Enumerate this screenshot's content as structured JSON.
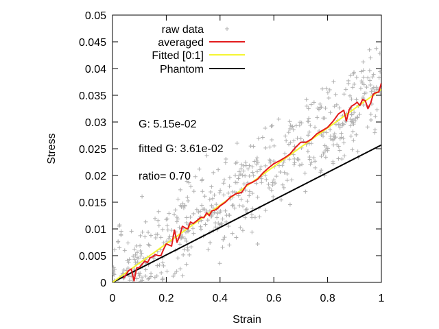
{
  "chart_data": {
    "type": "scatter",
    "xlabel": "Strain",
    "ylabel": "Stress",
    "xlim": [
      0,
      1
    ],
    "ylim": [
      0,
      0.05
    ],
    "x_ticks": [
      0,
      0.2,
      0.4,
      0.6,
      0.8,
      1
    ],
    "x_tick_labels": [
      "0",
      "0.2",
      "0.4",
      "0.6",
      "0.8",
      "1"
    ],
    "y_ticks": [
      0,
      0.005,
      0.01,
      0.015,
      0.02,
      0.025,
      0.03,
      0.035,
      0.04,
      0.045,
      0.05
    ],
    "y_tick_labels": [
      "0",
      "0.005",
      "0.01",
      "0.015",
      "0.02",
      "0.025",
      "0.03",
      "0.035",
      "0.04",
      "0.045",
      "0.05"
    ],
    "grid": false,
    "legend_position": "top-left",
    "legend": [
      {
        "label": "raw data",
        "key": "raw",
        "color": "#b0b0b0",
        "marker": "plus"
      },
      {
        "label": "averaged",
        "key": "avg",
        "color": "#e31a1c",
        "marker": "line"
      },
      {
        "label": "Fitted [0:1]",
        "key": "fit",
        "color": "#f5f532",
        "marker": "line"
      },
      {
        "label": "Phantom",
        "key": "phantom",
        "color": "#000000",
        "marker": "line"
      }
    ],
    "annotations": [
      "G: 5.15e-02",
      "fitted G: 3.61e-02",
      "ratio= 0.70"
    ],
    "raw_data_estimate": {
      "description": "point cloud around the fitted line",
      "x_range": [
        0,
        1
      ],
      "approx_slope": 0.0361,
      "approx_spread": 0.006,
      "n_points": 600
    },
    "series": [
      {
        "name": "averaged",
        "x": [
          0.04,
          0.05,
          0.06,
          0.07,
          0.08,
          0.09,
          0.1,
          0.11,
          0.12,
          0.13,
          0.14,
          0.15,
          0.16,
          0.17,
          0.18,
          0.19,
          0.2,
          0.21,
          0.22,
          0.23,
          0.24,
          0.25,
          0.26,
          0.27,
          0.28,
          0.29,
          0.3,
          0.31,
          0.32,
          0.33,
          0.34,
          0.35,
          0.36,
          0.37,
          0.38,
          0.39,
          0.4,
          0.42,
          0.44,
          0.46,
          0.48,
          0.5,
          0.52,
          0.54,
          0.56,
          0.58,
          0.6,
          0.62,
          0.64,
          0.66,
          0.68,
          0.7,
          0.72,
          0.74,
          0.76,
          0.78,
          0.8,
          0.82,
          0.84,
          0.86,
          0.87,
          0.88,
          0.89,
          0.9,
          0.91,
          0.92,
          0.93,
          0.94,
          0.95,
          0.96,
          0.97,
          0.98,
          0.99,
          1.0
        ],
        "y": [
          0.0008,
          0.0014,
          0.0022,
          0.0025,
          0.0003,
          0.0027,
          0.0028,
          0.0034,
          0.004,
          0.0037,
          0.0046,
          0.0048,
          0.0052,
          0.005,
          0.005,
          0.0062,
          0.0072,
          0.007,
          0.0068,
          0.0098,
          0.0075,
          0.0087,
          0.0105,
          0.0102,
          0.01,
          0.0113,
          0.011,
          0.0114,
          0.0118,
          0.0122,
          0.0121,
          0.013,
          0.0125,
          0.0134,
          0.0135,
          0.0138,
          0.0143,
          0.015,
          0.016,
          0.0166,
          0.0168,
          0.0183,
          0.0187,
          0.0193,
          0.0205,
          0.0214,
          0.0222,
          0.0227,
          0.0233,
          0.024,
          0.0252,
          0.0262,
          0.0262,
          0.0268,
          0.0278,
          0.0284,
          0.029,
          0.0301,
          0.0315,
          0.0322,
          0.0302,
          0.0323,
          0.033,
          0.0333,
          0.0337,
          0.0331,
          0.0342,
          0.034,
          0.0325,
          0.0335,
          0.0352,
          0.0355,
          0.0356,
          0.0373
        ]
      },
      {
        "name": "Fitted [0:1]",
        "x": [
          0,
          1
        ],
        "y": [
          0,
          0.0361
        ]
      },
      {
        "name": "Phantom",
        "x": [
          0,
          1
        ],
        "y": [
          0,
          0.0257
        ]
      }
    ]
  }
}
